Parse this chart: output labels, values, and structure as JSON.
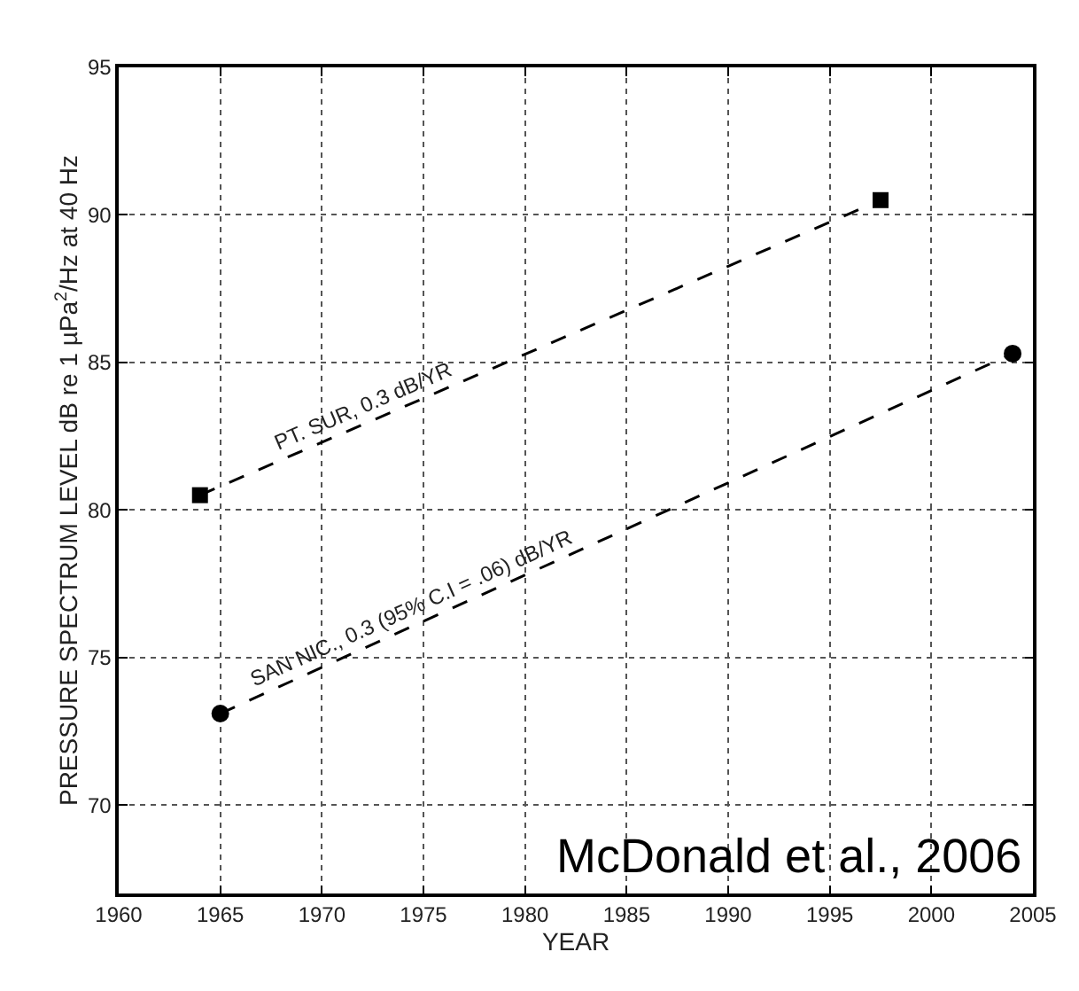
{
  "chart_data": {
    "type": "line",
    "xlabel": "YEAR",
    "ylabel": "PRESSURE SPECTRUM LEVEL dB re 1 µPa$^{2}$/Hz at 40 Hz",
    "series": [
      {
        "color": "#000000",
        "marker": "square",
        "x": [
          1964.0,
          1997.5
        ],
        "values": [
          80.5,
          90.5
        ]
      },
      {
        "color": "#000000",
        "marker": "circle",
        "x": [
          1965.0,
          2004.0
        ],
        "values": [
          73.1,
          85.3
        ]
      }
    ],
    "line_style": "dashed",
    "grid": true,
    "legend": false,
    "xlim": [
      1960,
      2005
    ],
    "xticks": [
      1960,
      1965,
      1970,
      1975,
      1980,
      1985,
      1990,
      1995,
      2000,
      2005
    ],
    "ylim": [
      67,
      95
    ],
    "yticks": [
      70,
      75,
      80,
      85,
      90,
      95
    ],
    "annotations": [
      "PT. SUR, 0.3 dB/YR",
      "SAN NIC., 0.3 (95% C.I = .06) dB/YR",
      "McDonald et al., 2006"
    ]
  }
}
